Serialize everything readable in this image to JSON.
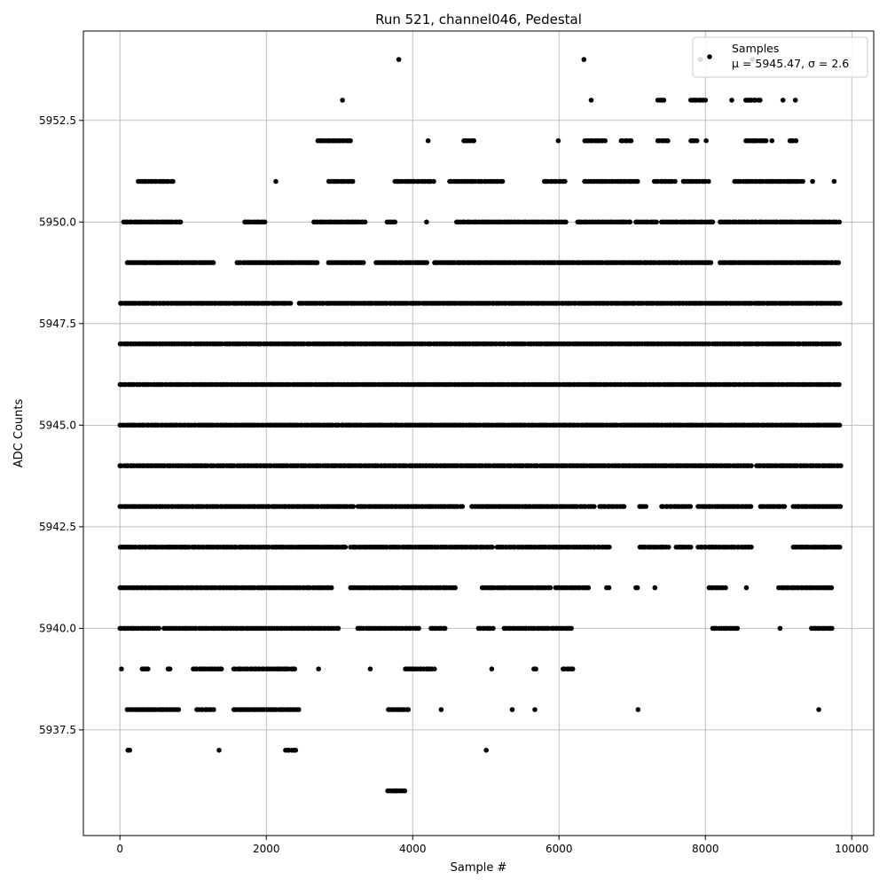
{
  "chart_data": {
    "type": "scatter",
    "title": "Run 521, channel046, Pedestal",
    "xlabel": "Sample #",
    "ylabel": "ADC Counts",
    "xlim": [
      -500,
      10300
    ],
    "ylim": [
      5934.9,
      5954.7
    ],
    "x_ticks": [
      0,
      2000,
      4000,
      6000,
      8000,
      10000
    ],
    "x_tick_labels": [
      "0",
      "2000",
      "4000",
      "6000",
      "8000",
      "10000"
    ],
    "y_ticks": [
      5937.5,
      5940.0,
      5942.5,
      5945.0,
      5947.5,
      5950.0,
      5952.5
    ],
    "y_tick_labels": [
      "5937.5",
      "5940.0",
      "5942.5",
      "5945.0",
      "5947.5",
      "5950.0",
      "5952.5"
    ],
    "grid": true,
    "legend_position": "top-right",
    "point_color": "#000000",
    "series": [
      {
        "name": "Samples",
        "legend_stats": "μ = 5945.47, σ = 2.6",
        "sample_range": [
          0,
          9850
        ],
        "level_ranges": [
          {
            "y": 5936,
            "x_ranges": [
              [
                3660,
                3900
              ]
            ]
          },
          {
            "y": 5937,
            "x_ranges": [
              [
                100,
                150
              ],
              [
                1340,
                1370
              ],
              [
                2260,
                2400
              ],
              [
                4990,
                5020
              ]
            ]
          },
          {
            "y": 5938,
            "x_ranges": [
              [
                100,
                800
              ],
              [
                1050,
                1300
              ],
              [
                1550,
                2450
              ],
              [
                3660,
                3940
              ],
              [
                4380,
                4400
              ],
              [
                5340,
                5380
              ],
              [
                5660,
                5680
              ],
              [
                7070,
                7090
              ],
              [
                9540,
                9560
              ]
            ]
          },
          {
            "y": 5939,
            "x_ranges": [
              [
                0,
                40
              ],
              [
                300,
                400
              ],
              [
                650,
                700
              ],
              [
                1000,
                1400
              ],
              [
                1550,
                2400
              ],
              [
                2700,
                2730
              ],
              [
                3400,
                3440
              ],
              [
                3900,
                4300
              ],
              [
                5070,
                5090
              ],
              [
                5650,
                5700
              ],
              [
                6050,
                6200
              ]
            ]
          },
          {
            "y": 5940,
            "x_ranges": [
              [
                0,
                550
              ],
              [
                600,
                3000
              ],
              [
                3250,
                4100
              ],
              [
                4250,
                4450
              ],
              [
                4900,
                5100
              ],
              [
                5250,
                6200
              ],
              [
                8100,
                8450
              ],
              [
                9000,
                9040
              ],
              [
                9450,
                9750
              ]
            ]
          },
          {
            "y": 5941,
            "x_ranges": [
              [
                0,
                2900
              ],
              [
                3150,
                3800
              ],
              [
                3850,
                4600
              ],
              [
                4950,
                5900
              ],
              [
                5950,
                6400
              ],
              [
                6650,
                6700
              ],
              [
                7050,
                7100
              ],
              [
                7300,
                7320
              ],
              [
                8050,
                8300
              ],
              [
                8550,
                8570
              ],
              [
                9000,
                9750
              ]
            ]
          },
          {
            "y": 5942,
            "x_ranges": [
              [
                0,
                3100
              ],
              [
                3150,
                5100
              ],
              [
                5150,
                6700
              ],
              [
                7100,
                7500
              ],
              [
                7600,
                7800
              ],
              [
                7900,
                8650
              ],
              [
                9200,
                9850
              ]
            ]
          },
          {
            "y": 5943,
            "x_ranges": [
              [
                0,
                3200
              ],
              [
                3250,
                4700
              ],
              [
                4800,
                6500
              ],
              [
                6550,
                6900
              ],
              [
                7100,
                7200
              ],
              [
                7400,
                7800
              ],
              [
                7900,
                8650
              ],
              [
                8750,
                9100
              ],
              [
                9200,
                9850
              ]
            ]
          },
          {
            "y": 5944,
            "x_ranges": [
              [
                0,
                8650
              ],
              [
                8700,
                9850
              ]
            ]
          },
          {
            "y": 5945,
            "x_ranges": [
              [
                0,
                9850
              ]
            ]
          },
          {
            "y": 5946,
            "x_ranges": [
              [
                0,
                9850
              ]
            ]
          },
          {
            "y": 5947,
            "x_ranges": [
              [
                0,
                9850
              ]
            ]
          },
          {
            "y": 5948,
            "x_ranges": [
              [
                0,
                2350
              ],
              [
                2450,
                9850
              ]
            ]
          },
          {
            "y": 5949,
            "x_ranges": [
              [
                100,
                1300
              ],
              [
                1600,
                2700
              ],
              [
                2850,
                3350
              ],
              [
                3500,
                4200
              ],
              [
                4300,
                8100
              ],
              [
                8200,
                9850
              ]
            ]
          },
          {
            "y": 5950,
            "x_ranges": [
              [
                50,
                850
              ],
              [
                1700,
                1980
              ],
              [
                2650,
                3350
              ],
              [
                3650,
                3780
              ],
              [
                4180,
                4200
              ],
              [
                4600,
                6100
              ],
              [
                6250,
                7000
              ],
              [
                7050,
                7350
              ],
              [
                7400,
                8100
              ],
              [
                8200,
                9850
              ]
            ]
          },
          {
            "y": 5951,
            "x_ranges": [
              [
                250,
                750
              ],
              [
                2120,
                2140
              ],
              [
                2850,
                3200
              ],
              [
                3750,
                4300
              ],
              [
                4500,
                5250
              ],
              [
                5800,
                6100
              ],
              [
                6350,
                7100
              ],
              [
                7300,
                7600
              ],
              [
                7700,
                8050
              ],
              [
                8400,
                9350
              ],
              [
                9450,
                9480
              ],
              [
                9750,
                9770
              ]
            ]
          },
          {
            "y": 5952,
            "x_ranges": [
              [
                2700,
                3150
              ],
              [
                4200,
                4220
              ],
              [
                4700,
                4850
              ],
              [
                5980,
                6000
              ],
              [
                6350,
                6650
              ],
              [
                6850,
                7000
              ],
              [
                7350,
                7500
              ],
              [
                7800,
                7900
              ],
              [
                8000,
                8020
              ],
              [
                8550,
                8850
              ],
              [
                8900,
                8920
              ],
              [
                9150,
                9250
              ]
            ]
          },
          {
            "y": 5953,
            "x_ranges": [
              [
                3030,
                3050
              ],
              [
                6430,
                6450
              ],
              [
                7350,
                7450
              ],
              [
                7800,
                8000
              ],
              [
                8350,
                8370
              ],
              [
                8550,
                8750
              ],
              [
                9050,
                9070
              ],
              [
                9220,
                9240
              ]
            ]
          },
          {
            "y": 5954,
            "x_ranges": [
              [
                3800,
                3820
              ],
              [
                6330,
                6350
              ],
              [
                7920,
                7940
              ],
              [
                8630,
                8650
              ]
            ]
          }
        ]
      }
    ]
  }
}
